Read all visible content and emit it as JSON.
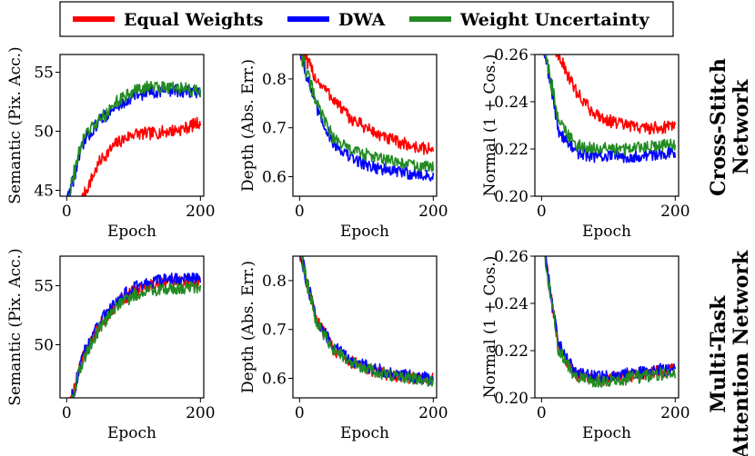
{
  "legend": {
    "items": [
      {
        "label": "Equal Weights",
        "color": "#ff0000"
      },
      {
        "label": "DWA",
        "color": "#0000ff"
      },
      {
        "label": "Weight Uncertainty",
        "color": "#228b22"
      }
    ]
  },
  "row_labels": [
    {
      "lines": [
        "Cross-Stitch",
        "Network"
      ]
    },
    {
      "lines": [
        "Multi-Task",
        "Attention Network"
      ]
    }
  ],
  "chart_data": [
    {
      "type": "line",
      "row": 0,
      "col": 0,
      "xlabel": "Epoch",
      "ylabel": "Semantic (Pix. Acc.)",
      "xlim": [
        -10,
        205
      ],
      "ylim": [
        44.5,
        56.5
      ],
      "xticks": [
        0,
        200
      ],
      "yticks": [
        45,
        50,
        55
      ],
      "series": [
        {
          "name": "Equal Weights",
          "color": "#ff0000",
          "x": [
            0,
            25,
            50,
            75,
            100,
            125,
            150,
            175,
            200
          ],
          "y": [
            42.0,
            44.5,
            47.5,
            49.0,
            49.8,
            49.8,
            50.0,
            50.2,
            50.8
          ]
        },
        {
          "name": "DWA",
          "color": "#0000ff",
          "x": [
            0,
            25,
            50,
            75,
            100,
            125,
            150,
            175,
            200
          ],
          "y": [
            44.0,
            49.0,
            51.0,
            52.0,
            53.0,
            53.3,
            53.5,
            53.4,
            53.3
          ]
        },
        {
          "name": "Weight Uncertainty",
          "color": "#228b22",
          "x": [
            0,
            25,
            50,
            75,
            100,
            125,
            150,
            175,
            200
          ],
          "y": [
            44.0,
            49.5,
            51.0,
            52.5,
            53.4,
            53.8,
            53.8,
            53.6,
            53.3
          ]
        }
      ]
    },
    {
      "type": "line",
      "row": 0,
      "col": 1,
      "xlabel": "Epoch",
      "ylabel": "Depth (Abs. Err.)",
      "xlim": [
        -10,
        205
      ],
      "ylim": [
        0.56,
        0.85
      ],
      "xticks": [
        0,
        200
      ],
      "yticks": [
        0.6,
        0.7,
        0.8
      ],
      "series": [
        {
          "name": "Equal Weights",
          "color": "#ff0000",
          "x": [
            0,
            25,
            50,
            75,
            100,
            125,
            150,
            175,
            200
          ],
          "y": [
            0.86,
            0.8,
            0.76,
            0.72,
            0.7,
            0.68,
            0.67,
            0.66,
            0.655
          ]
        },
        {
          "name": "DWA",
          "color": "#0000ff",
          "x": [
            0,
            25,
            50,
            75,
            100,
            125,
            150,
            175,
            200
          ],
          "y": [
            0.86,
            0.74,
            0.67,
            0.64,
            0.625,
            0.615,
            0.61,
            0.605,
            0.6
          ]
        },
        {
          "name": "Weight Uncertainty",
          "color": "#228b22",
          "x": [
            0,
            25,
            50,
            75,
            100,
            125,
            150,
            175,
            200
          ],
          "y": [
            0.86,
            0.75,
            0.68,
            0.655,
            0.645,
            0.635,
            0.628,
            0.622,
            0.618
          ]
        }
      ]
    },
    {
      "type": "line",
      "row": 0,
      "col": 2,
      "xlabel": "Epoch",
      "ylabel": "Normal (1 + Cos.)",
      "xlim": [
        -10,
        205
      ],
      "ylim": [
        0.2,
        0.26
      ],
      "xticks": [
        0,
        200
      ],
      "yticks": [
        0.2,
        0.22,
        0.24,
        0.26
      ],
      "series": [
        {
          "name": "Equal Weights",
          "color": "#ff0000",
          "x": [
            0,
            25,
            50,
            75,
            100,
            125,
            150,
            175,
            200
          ],
          "y": [
            0.27,
            0.26,
            0.245,
            0.236,
            0.232,
            0.23,
            0.229,
            0.229,
            0.23
          ]
        },
        {
          "name": "DWA",
          "color": "#0000ff",
          "x": [
            0,
            25,
            50,
            75,
            100,
            125,
            150,
            175,
            200
          ],
          "y": [
            0.27,
            0.228,
            0.219,
            0.217,
            0.217,
            0.217,
            0.217,
            0.218,
            0.219
          ]
        },
        {
          "name": "Weight Uncertainty",
          "color": "#228b22",
          "x": [
            0,
            25,
            50,
            75,
            100,
            125,
            150,
            175,
            200
          ],
          "y": [
            0.27,
            0.232,
            0.222,
            0.22,
            0.22,
            0.22,
            0.221,
            0.221,
            0.222
          ]
        }
      ]
    },
    {
      "type": "line",
      "row": 1,
      "col": 0,
      "xlabel": "Epoch",
      "ylabel": "Semantic (Pix. Acc.)",
      "xlim": [
        -10,
        205
      ],
      "ylim": [
        45.5,
        57.5
      ],
      "xticks": [
        0,
        200
      ],
      "yticks": [
        50,
        55
      ],
      "series": [
        {
          "name": "Equal Weights",
          "color": "#ff0000",
          "x": [
            0,
            25,
            50,
            75,
            100,
            125,
            150,
            175,
            200
          ],
          "y": [
            44.0,
            49.0,
            51.8,
            53.5,
            54.5,
            55.0,
            55.2,
            55.3,
            55.3
          ]
        },
        {
          "name": "DWA",
          "color": "#0000ff",
          "x": [
            0,
            25,
            50,
            75,
            100,
            125,
            150,
            175,
            200
          ],
          "y": [
            44.0,
            49.2,
            52.0,
            53.8,
            54.8,
            55.3,
            55.5,
            55.6,
            55.6
          ]
        },
        {
          "name": "Weight Uncertainty",
          "color": "#228b22",
          "x": [
            0,
            25,
            50,
            75,
            100,
            125,
            150,
            175,
            200
          ],
          "y": [
            44.0,
            48.8,
            51.5,
            53.2,
            54.2,
            54.6,
            54.8,
            54.8,
            54.9
          ]
        }
      ]
    },
    {
      "type": "line",
      "row": 1,
      "col": 1,
      "xlabel": "Epoch",
      "ylabel": "Depth (Abs. Err.)",
      "xlim": [
        -10,
        205
      ],
      "ylim": [
        0.56,
        0.85
      ],
      "xticks": [
        0,
        200
      ],
      "yticks": [
        0.6,
        0.7,
        0.8
      ],
      "series": [
        {
          "name": "Equal Weights",
          "color": "#ff0000",
          "x": [
            0,
            25,
            50,
            75,
            100,
            125,
            150,
            175,
            200
          ],
          "y": [
            0.86,
            0.72,
            0.66,
            0.635,
            0.62,
            0.61,
            0.605,
            0.6,
            0.598
          ]
        },
        {
          "name": "DWA",
          "color": "#0000ff",
          "x": [
            0,
            25,
            50,
            75,
            100,
            125,
            150,
            175,
            200
          ],
          "y": [
            0.86,
            0.72,
            0.665,
            0.64,
            0.625,
            0.615,
            0.607,
            0.602,
            0.6
          ]
        },
        {
          "name": "Weight Uncertainty",
          "color": "#228b22",
          "x": [
            0,
            25,
            50,
            75,
            100,
            125,
            150,
            175,
            200
          ],
          "y": [
            0.86,
            0.715,
            0.66,
            0.635,
            0.62,
            0.61,
            0.603,
            0.598,
            0.595
          ]
        }
      ]
    },
    {
      "type": "line",
      "row": 1,
      "col": 2,
      "xlabel": "Epoch",
      "ylabel": "Normal (1 + Cos.)",
      "xlim": [
        -10,
        205
      ],
      "ylim": [
        0.2,
        0.26
      ],
      "xticks": [
        0,
        200
      ],
      "yticks": [
        0.2,
        0.22,
        0.24,
        0.26
      ],
      "series": [
        {
          "name": "Equal Weights",
          "color": "#ff0000",
          "x": [
            0,
            25,
            50,
            75,
            100,
            125,
            150,
            175,
            200
          ],
          "y": [
            0.27,
            0.222,
            0.21,
            0.208,
            0.208,
            0.209,
            0.21,
            0.211,
            0.212
          ]
        },
        {
          "name": "DWA",
          "color": "#0000ff",
          "x": [
            0,
            25,
            50,
            75,
            100,
            125,
            150,
            175,
            200
          ],
          "y": [
            0.27,
            0.223,
            0.211,
            0.209,
            0.209,
            0.21,
            0.211,
            0.212,
            0.212
          ]
        },
        {
          "name": "Weight Uncertainty",
          "color": "#228b22",
          "x": [
            0,
            25,
            50,
            75,
            100,
            125,
            150,
            175,
            200
          ],
          "y": [
            0.27,
            0.221,
            0.209,
            0.207,
            0.207,
            0.208,
            0.209,
            0.21,
            0.211
          ]
        }
      ]
    }
  ]
}
